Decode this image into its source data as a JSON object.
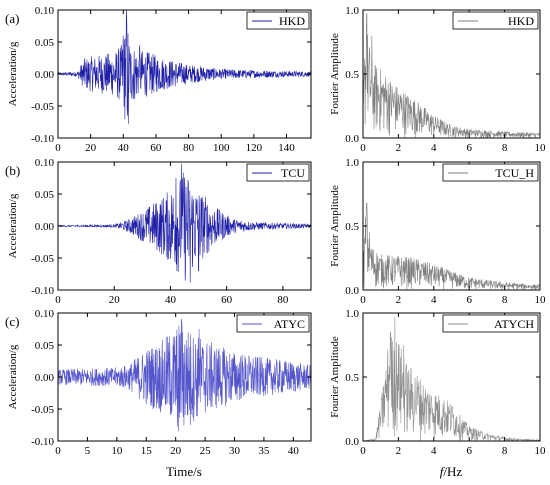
{
  "figure": {
    "xlabels": {
      "left": "Time/s",
      "right_italic": "f",
      "right_rest": "/Hz"
    }
  },
  "chart_data": [
    {
      "type": "line",
      "panel_label": "(a)",
      "ylabel": "Acceleration/g",
      "xlim": [
        0,
        155
      ],
      "ylim": [
        -0.1,
        0.1
      ],
      "xticks": [
        0,
        20,
        40,
        60,
        80,
        100,
        120,
        140
      ],
      "yticks": [
        -0.1,
        -0.05,
        0.0,
        0.05,
        0.1
      ],
      "series": [
        {
          "name": "HKD",
          "color": "#1f1fa8"
        }
      ],
      "envelope": [
        [
          0,
          0.002
        ],
        [
          12,
          0.004
        ],
        [
          16,
          0.025
        ],
        [
          25,
          0.03
        ],
        [
          35,
          0.035
        ],
        [
          40,
          0.05
        ],
        [
          42,
          0.1
        ],
        [
          44,
          0.05
        ],
        [
          48,
          0.04
        ],
        [
          55,
          0.035
        ],
        [
          65,
          0.025
        ],
        [
          80,
          0.015
        ],
        [
          100,
          0.008
        ],
        [
          120,
          0.006
        ],
        [
          155,
          0.004
        ]
      ],
      "peaks": [
        [
          42,
          0.1
        ],
        [
          43,
          -0.078
        ],
        [
          40,
          0.06
        ],
        [
          50,
          0.045
        ]
      ],
      "samples": 900
    },
    {
      "type": "line",
      "ylabel": "Fourier Amplitude",
      "xlim": [
        0,
        10
      ],
      "ylim": [
        0,
        1.0
      ],
      "xticks": [
        0,
        2,
        4,
        6,
        8,
        10
      ],
      "yticks": [
        0.0,
        0.5,
        1.0
      ],
      "series": [
        {
          "name": "HKD",
          "color": "#808080"
        }
      ],
      "envelope": [
        [
          0,
          0.3
        ],
        [
          0.15,
          0.95
        ],
        [
          0.5,
          0.6
        ],
        [
          1,
          0.55
        ],
        [
          2,
          0.4
        ],
        [
          3,
          0.3
        ],
        [
          4,
          0.18
        ],
        [
          5,
          0.1
        ],
        [
          6,
          0.07
        ],
        [
          8,
          0.05
        ],
        [
          10,
          0.04
        ]
      ],
      "peaks": [
        [
          0.2,
          0.97
        ],
        [
          0.5,
          0.8
        ]
      ],
      "samples": 500
    },
    {
      "type": "line",
      "panel_label": "(b)",
      "ylabel": "Acceleration/g",
      "xlim": [
        0,
        90
      ],
      "ylim": [
        -0.1,
        0.1
      ],
      "xticks": [
        0,
        20,
        40,
        60,
        80
      ],
      "yticks": [
        -0.1,
        -0.05,
        0.0,
        0.05,
        0.1
      ],
      "series": [
        {
          "name": "TCU",
          "color": "#1f1fa8"
        }
      ],
      "envelope": [
        [
          0,
          0.001
        ],
        [
          20,
          0.002
        ],
        [
          25,
          0.01
        ],
        [
          32,
          0.03
        ],
        [
          38,
          0.05
        ],
        [
          42,
          0.07
        ],
        [
          45,
          0.09
        ],
        [
          48,
          0.07
        ],
        [
          52,
          0.05
        ],
        [
          56,
          0.03
        ],
        [
          62,
          0.012
        ],
        [
          70,
          0.006
        ],
        [
          90,
          0.003
        ]
      ],
      "peaks": [
        [
          44,
          0.097
        ],
        [
          47,
          -0.088
        ],
        [
          42,
          0.075
        ],
        [
          50,
          -0.07
        ]
      ],
      "samples": 800
    },
    {
      "type": "line",
      "ylabel": "Fourier Amplitude",
      "xlim": [
        0,
        10
      ],
      "ylim": [
        0,
        1.0
      ],
      "xticks": [
        0,
        2,
        4,
        6,
        8,
        10
      ],
      "yticks": [
        0.0,
        0.5,
        1.0
      ],
      "series": [
        {
          "name": "TCU_H",
          "color": "#808080"
        }
      ],
      "envelope": [
        [
          0,
          0.2
        ],
        [
          0.15,
          0.65
        ],
        [
          0.5,
          0.35
        ],
        [
          1,
          0.28
        ],
        [
          2,
          0.27
        ],
        [
          3,
          0.25
        ],
        [
          4,
          0.2
        ],
        [
          5,
          0.15
        ],
        [
          6,
          0.1
        ],
        [
          8,
          0.06
        ],
        [
          10,
          0.04
        ]
      ],
      "peaks": [
        [
          0.2,
          0.68
        ]
      ],
      "samples": 500
    },
    {
      "type": "line",
      "panel_label": "(c)",
      "ylabel": "Acceleration/g",
      "xlim": [
        0,
        43
      ],
      "ylim": [
        -0.1,
        0.1
      ],
      "xticks": [
        0,
        5,
        10,
        15,
        20,
        25,
        30,
        35,
        40
      ],
      "yticks": [
        -0.1,
        -0.05,
        0.0,
        0.05,
        0.1
      ],
      "series": [
        {
          "name": "ATYC",
          "color": "#5555cc"
        }
      ],
      "envelope": [
        [
          0,
          0.012
        ],
        [
          10,
          0.015
        ],
        [
          12,
          0.02
        ],
        [
          15,
          0.045
        ],
        [
          18,
          0.06
        ],
        [
          20,
          0.08
        ],
        [
          21,
          0.09
        ],
        [
          23,
          0.07
        ],
        [
          26,
          0.055
        ],
        [
          30,
          0.04
        ],
        [
          35,
          0.03
        ],
        [
          40,
          0.025
        ],
        [
          42,
          0.02
        ]
      ],
      "peaks": [
        [
          21,
          0.09
        ],
        [
          20.5,
          -0.085
        ],
        [
          24,
          0.075
        ],
        [
          22.5,
          -0.075
        ]
      ],
      "samples": 900
    },
    {
      "type": "line",
      "ylabel": "Fourier Amplitude",
      "xlim": [
        0,
        10
      ],
      "ylim": [
        0,
        1.0
      ],
      "xticks": [
        0,
        2,
        4,
        6,
        8,
        10
      ],
      "yticks": [
        0.0,
        0.5,
        1.0
      ],
      "series": [
        {
          "name": "ATYCH",
          "color": "#909090"
        }
      ],
      "envelope": [
        [
          0,
          0.0
        ],
        [
          0.7,
          0.02
        ],
        [
          1,
          0.3
        ],
        [
          1.5,
          0.85
        ],
        [
          2,
          0.8
        ],
        [
          2.5,
          0.6
        ],
        [
          3,
          0.55
        ],
        [
          3.5,
          0.45
        ],
        [
          4,
          0.4
        ],
        [
          4.5,
          0.35
        ],
        [
          5,
          0.3
        ],
        [
          5.5,
          0.2
        ],
        [
          6,
          0.12
        ],
        [
          7,
          0.06
        ],
        [
          8,
          0.03
        ],
        [
          9,
          0.015
        ],
        [
          10,
          0.01
        ]
      ],
      "peaks": [
        [
          1.8,
          0.97
        ],
        [
          1.55,
          0.85
        ],
        [
          2.3,
          0.75
        ]
      ],
      "samples": 500
    }
  ]
}
